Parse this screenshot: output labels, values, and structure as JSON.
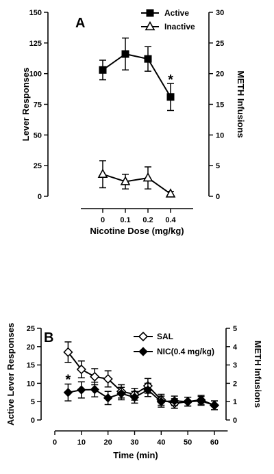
{
  "chart_data": [
    {
      "type": "line",
      "panel_label": "A",
      "xlabel": "Nicotine Dose (mg/kg)",
      "ylabel": "Lever  Responses",
      "y2label": "METH  Infusions",
      "x_tick_labels": [
        "0",
        "0.1",
        "0.2",
        "0.4"
      ],
      "ylim": [
        0,
        150
      ],
      "y_ticks": [
        0,
        25,
        50,
        75,
        100,
        125,
        150
      ],
      "y2lim": [
        0,
        30
      ],
      "y2_ticks": [
        0,
        5,
        10,
        15,
        20,
        25,
        30
      ],
      "legend_position": "top-right",
      "series": [
        {
          "name": "Active",
          "marker": "square-filled",
          "values": [
            103,
            116,
            112,
            81
          ],
          "error": [
            8,
            13,
            10,
            11
          ]
        },
        {
          "name": "Inactive",
          "marker": "triangle-open",
          "values": [
            18,
            12,
            15,
            2
          ],
          "error": [
            11,
            6,
            9,
            2
          ]
        }
      ],
      "annotations": [
        {
          "text": "*",
          "category_index": 3,
          "y": 96
        }
      ]
    },
    {
      "type": "line",
      "panel_label": "B",
      "xlabel": "Time (min)",
      "ylabel": "Active  Lever  Responses",
      "y2label": "METH Infusions",
      "xlim": [
        0,
        65
      ],
      "x_ticks": [
        0,
        10,
        20,
        30,
        40,
        50,
        60
      ],
      "ylim": [
        0,
        25
      ],
      "y_ticks": [
        0,
        5,
        10,
        15,
        20,
        25
      ],
      "y2lim": [
        0,
        5
      ],
      "y2_ticks": [
        0,
        1,
        2,
        3,
        4,
        5
      ],
      "legend_position": "top-right",
      "series": [
        {
          "name": "SAL",
          "marker": "diamond-open",
          "x": [
            5,
            10,
            15,
            20,
            25,
            30,
            35,
            40,
            45,
            50,
            55,
            60
          ],
          "values": [
            18.5,
            13.8,
            11.8,
            11.2,
            7.8,
            7,
            9.3,
            5.5,
            4.5,
            5,
            5.2,
            4
          ],
          "error": [
            2.8,
            2.3,
            2.2,
            2.2,
            1.8,
            1.6,
            2,
            1.5,
            1.3,
            1.2,
            1.2,
            1.2
          ]
        },
        {
          "name": "NIC(0.4 mg/kg)",
          "marker": "diamond-filled",
          "x": [
            5,
            10,
            15,
            20,
            25,
            30,
            35,
            40,
            45,
            50,
            55,
            60
          ],
          "values": [
            7.5,
            8.2,
            8.3,
            6,
            7.2,
            6.2,
            8.2,
            5,
            5.2,
            5,
            5.5,
            4
          ],
          "error": [
            2.3,
            2.2,
            2,
            1.8,
            1.7,
            1.6,
            1.8,
            1.5,
            1.3,
            1.2,
            1.2,
            1.2
          ]
        }
      ],
      "annotations": [
        {
          "text": "*",
          "x": 5,
          "y": 11.3
        }
      ]
    }
  ]
}
